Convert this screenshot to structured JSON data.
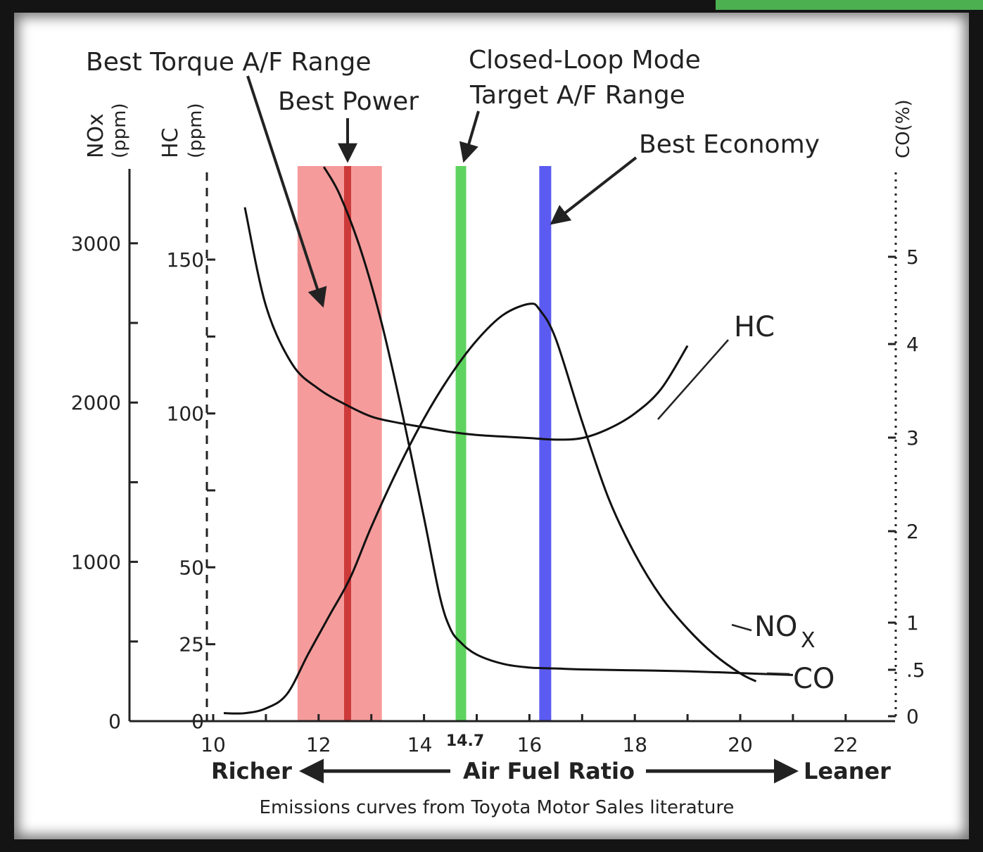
{
  "chart_data": {
    "type": "line",
    "caption": "Emissions curves from Toyota Motor Sales literature",
    "x_axis": {
      "range": [
        10,
        23
      ],
      "ticks": [
        10,
        11,
        12,
        13,
        14,
        15,
        16,
        17,
        18,
        19,
        20,
        21,
        22
      ],
      "tick_labels": [
        "10",
        "12",
        "14",
        "14.7",
        "16",
        "18",
        "20",
        "22"
      ],
      "label": "Air Fuel Ratio",
      "left_label": "Richer",
      "right_label": "Leaner"
    },
    "axes": {
      "nox": {
        "title": "NOx",
        "unit": "(ppm)",
        "ticks": [
          "0",
          "1000",
          "2000",
          "3000"
        ],
        "range": [
          0,
          3500
        ]
      },
      "hc": {
        "title": "HC",
        "unit": "(ppm)",
        "ticks": [
          "0",
          "25",
          "50",
          "100",
          "150"
        ],
        "range": [
          0,
          175
        ]
      },
      "co": {
        "title": "CO(%)",
        "ticks": [
          "0",
          ".5",
          "1",
          "2",
          "3",
          "4",
          "5"
        ],
        "range": [
          0,
          6
        ]
      }
    },
    "series": [
      {
        "name": "HC",
        "axis": "hc",
        "x": [
          10.6,
          11.0,
          11.5,
          12.0,
          12.5,
          13.0,
          13.5,
          14.0,
          14.5,
          15.0,
          15.5,
          16.0,
          16.5,
          17.0,
          17.5,
          18.0,
          18.5,
          19.0
        ],
        "y": [
          167,
          135,
          116,
          108,
          103,
          99,
          97,
          95.5,
          94,
          93,
          92.5,
          92,
          91.5,
          92,
          95,
          100,
          108,
          122
        ]
      },
      {
        "name": "NOx",
        "axis": "nox",
        "x": [
          10.2,
          10.6,
          11.0,
          11.4,
          11.8,
          12.2,
          12.6,
          13.0,
          13.5,
          14.0,
          14.5,
          15.0,
          15.5,
          16.0,
          16.2,
          16.5,
          17.0,
          17.5,
          18.0,
          18.5,
          19.0,
          19.5,
          20.0,
          20.3
        ],
        "y": [
          50,
          50,
          80,
          170,
          420,
          660,
          900,
          1220,
          1580,
          1900,
          2170,
          2390,
          2550,
          2620,
          2580,
          2400,
          1880,
          1400,
          1050,
          780,
          580,
          420,
          300,
          250
        ]
      },
      {
        "name": "CO",
        "axis": "co",
        "x": [
          12.1,
          12.4,
          12.8,
          13.2,
          13.6,
          14.0,
          14.3,
          14.5,
          14.7,
          15.0,
          15.5,
          16.0,
          16.5,
          17.0,
          18.0,
          19.0,
          20.0,
          21.0
        ],
        "y": [
          6.0,
          5.7,
          5.1,
          4.3,
          3.3,
          2.2,
          1.35,
          1.0,
          0.85,
          0.72,
          0.62,
          0.58,
          0.57,
          0.56,
          0.55,
          0.54,
          0.52,
          0.5
        ]
      }
    ],
    "bands": [
      {
        "label": "Best Torque A/F Range",
        "from": 11.6,
        "to": 13.2,
        "color": "#f59b9b"
      },
      {
        "label": "Best Power",
        "at": 12.55,
        "color": "#cc3a3a"
      },
      {
        "label": "Closed-Loop Mode Target A/F Range",
        "at": 14.7,
        "color": "#5fd35f"
      },
      {
        "label": "Best Economy",
        "at": 16.3,
        "color": "#5b5bf2"
      }
    ],
    "annotations": {
      "best_torque": "Best Torque A/F Range",
      "best_power": "Best Power",
      "closed_loop_1": "Closed-Loop Mode",
      "closed_loop_2": "Target A/F Range",
      "best_economy": "Best Economy",
      "hc": "HC",
      "nox_main": "NO",
      "nox_sub": "X",
      "co": "CO"
    }
  }
}
